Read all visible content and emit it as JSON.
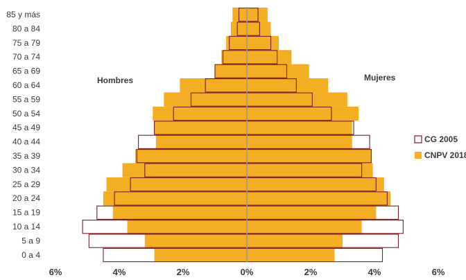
{
  "chart_data": {
    "type": "bar",
    "orientation": "horizontal-population-pyramid",
    "categories": [
      "85 y más",
      "80 a 84",
      "75 a 79",
      "70 a 74",
      "65 a 69",
      "60 a 64",
      "55 a 59",
      "50 a 54",
      "45 a 49",
      "40 a 44",
      "35 a 39",
      "30 a 34",
      "25 a 29",
      "20 a 24",
      "15 a 19",
      "10 a 14",
      "5 a 9",
      "0 a 4"
    ],
    "xticks": [
      "6%",
      "4%",
      "2%",
      "0%",
      "2%",
      "4%",
      "6%"
    ],
    "xlim": [
      -6,
      6
    ],
    "left_label": "Hombres",
    "right_label": "Mujeres",
    "legend_position": "right",
    "series": [
      {
        "name": "CNPV 2018",
        "color": "#f4ae24",
        "style": "filled",
        "hombres": [
          0.45,
          0.5,
          0.65,
          0.8,
          1.0,
          2.1,
          2.6,
          2.95,
          2.9,
          2.85,
          3.5,
          3.9,
          4.4,
          4.5,
          4.2,
          3.75,
          3.2,
          2.9
        ],
        "mujeres": [
          0.65,
          0.75,
          1.0,
          1.4,
          1.95,
          2.55,
          3.15,
          3.5,
          3.3,
          3.3,
          3.9,
          3.95,
          4.3,
          4.5,
          4.05,
          3.6,
          3.0,
          2.75
        ]
      },
      {
        "name": "CG 2005",
        "color": "#7a1c24",
        "style": "outline",
        "hombres": [
          0.25,
          0.3,
          0.55,
          0.75,
          1.0,
          1.3,
          1.75,
          2.3,
          2.9,
          3.4,
          3.45,
          3.2,
          3.65,
          4.15,
          4.7,
          5.15,
          4.95,
          4.5
        ],
        "mujeres": [
          0.35,
          0.4,
          0.75,
          0.95,
          1.25,
          1.55,
          2.05,
          2.65,
          3.35,
          3.85,
          3.9,
          3.6,
          4.05,
          4.4,
          4.75,
          4.9,
          4.75,
          4.25
        ]
      }
    ]
  },
  "colors": {
    "axis": "#a0a0a0",
    "text": "#3a3a3a"
  }
}
